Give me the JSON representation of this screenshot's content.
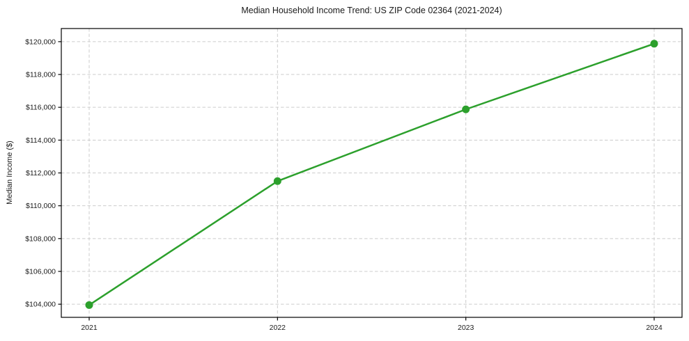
{
  "chart_data": {
    "type": "line",
    "title": "Median Household Income Trend: US ZIP Code 02364 (2021-2024)",
    "xlabel": "",
    "ylabel": "Median Income ($)",
    "categories": [
      "2021",
      "2022",
      "2023",
      "2024"
    ],
    "values": [
      103950,
      111500,
      115875,
      119875
    ],
    "ylim": [
      103200,
      120800
    ],
    "yticks": [
      104000,
      106000,
      108000,
      110000,
      112000,
      114000,
      116000,
      118000,
      120000
    ],
    "ytick_labels": [
      "$104,000",
      "$106,000",
      "$108,000",
      "$110,000",
      "$112,000",
      "$114,000",
      "$116,000",
      "$118,000",
      "$120,000"
    ],
    "grid": true,
    "grid_style": "dashed",
    "legend_position": "none",
    "line_color": "#2ca02c",
    "marker_color": "#2ca02c",
    "grid_color": "#cccccc",
    "axis_color": "#000000",
    "text_color": "#1a1a1a"
  }
}
